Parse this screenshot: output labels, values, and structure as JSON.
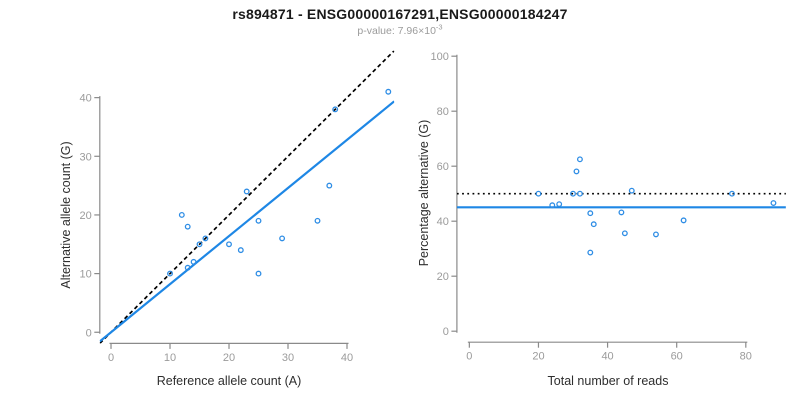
{
  "header": {
    "title": "rs894871 - ENSG00000167291,ENSG00000184247",
    "pvalue_prefix": "p-value: 7.96×10",
    "pvalue_exponent": "-3"
  },
  "colors": {
    "title": "#1a1a1a",
    "subtitle": "#9b9b9b",
    "axis_line": "#8a8a8a",
    "tick_label": "#9b9b9b",
    "axis_title": "#2e2e2e",
    "point": "#2e8de5",
    "fit_line": "#1e87e5",
    "reference_line": "#000000"
  },
  "chart_data": [
    {
      "type": "scatter",
      "name": "allele-counts",
      "xlabel": "Reference allele count (A)",
      "ylabel": "Alternative allele count (G)",
      "xticks": [
        0,
        10,
        20,
        30,
        40
      ],
      "yticks": [
        0,
        10,
        20,
        30,
        40
      ],
      "xlim": [
        -1.9,
        48
      ],
      "ylim": [
        -1.9,
        48
      ],
      "marker": "open-circle",
      "points": [
        [
          10,
          10
        ],
        [
          12,
          20
        ],
        [
          13,
          18
        ],
        [
          13,
          11
        ],
        [
          14,
          12
        ],
        [
          15,
          15
        ],
        [
          16,
          16
        ],
        [
          20,
          15
        ],
        [
          22,
          14
        ],
        [
          23,
          24
        ],
        [
          25,
          19
        ],
        [
          25,
          10
        ],
        [
          29,
          16
        ],
        [
          35,
          19
        ],
        [
          37,
          25
        ],
        [
          38,
          38
        ],
        [
          47,
          41
        ]
      ],
      "lines": [
        {
          "name": "identity-line",
          "style": "dashed",
          "color": "#000000",
          "slope": 1,
          "intercept": 0
        },
        {
          "name": "regression-line",
          "style": "solid",
          "color": "#1e87e5",
          "slope": 0.82,
          "intercept": 0
        }
      ],
      "legend": "none",
      "grid": false
    },
    {
      "type": "scatter",
      "name": "percentage-vs-coverage",
      "xlabel": "Total number of reads",
      "ylabel": "Percentage alternative (G)",
      "xticks": [
        0,
        20,
        40,
        60,
        80
      ],
      "yticks": [
        0,
        20,
        40,
        60,
        80,
        100
      ],
      "xlim": [
        -3.6,
        91.6
      ],
      "ylim": [
        -4,
        104
      ],
      "marker": "open-circle",
      "points": [
        [
          20,
          50.0
        ],
        [
          32,
          62.5
        ],
        [
          31,
          58.1
        ],
        [
          24,
          45.8
        ],
        [
          26,
          46.2
        ],
        [
          30,
          50.0
        ],
        [
          32,
          50.0
        ],
        [
          35,
          42.9
        ],
        [
          36,
          38.9
        ],
        [
          47,
          51.1
        ],
        [
          44,
          43.2
        ],
        [
          35,
          28.6
        ],
        [
          45,
          35.6
        ],
        [
          54,
          35.2
        ],
        [
          62,
          40.3
        ],
        [
          76,
          50.0
        ],
        [
          88,
          46.6
        ]
      ],
      "lines": [
        {
          "name": "expected-50pct-line",
          "style": "dotted",
          "color": "#000000",
          "y": 50
        },
        {
          "name": "observed-mean-line",
          "style": "solid",
          "color": "#1e87e5",
          "y": 45.05
        }
      ],
      "legend": "none",
      "grid": false
    }
  ]
}
